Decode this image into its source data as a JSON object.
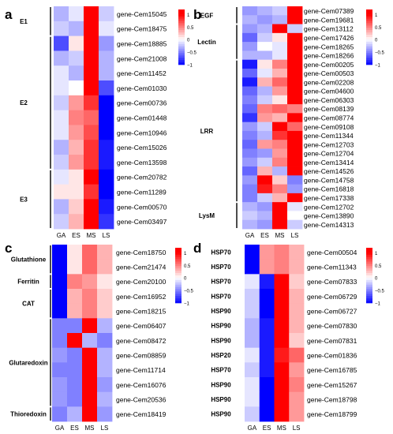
{
  "colors": {
    "low": "#0000ff",
    "mid": "#ffffff",
    "high": "#ff0000"
  },
  "chart_data": [
    {
      "type": "heatmap",
      "panel_label": "a",
      "x_categories": [
        "GA",
        "ES",
        "MS",
        "LS"
      ],
      "legend": {
        "ticks": [
          "1",
          "0.5",
          "0",
          "−0.5",
          "−1"
        ],
        "range": [
          -1,
          1.2
        ]
      },
      "rows": [
        {
          "label": "gene-Cem15045",
          "values": [
            -0.3,
            -0.1,
            1.2,
            -0.2
          ]
        },
        {
          "label": "gene-Cem18475",
          "values": [
            -0.2,
            -0.3,
            1.2,
            -0.1
          ]
        },
        {
          "label": "gene-Cem18885",
          "values": [
            -0.7,
            0.1,
            1.0,
            -0.4
          ]
        },
        {
          "label": "gene-Cem21008",
          "values": [
            -0.3,
            -0.2,
            1.2,
            -0.3
          ]
        },
        {
          "label": "gene-Cem11452",
          "values": [
            -0.1,
            -0.3,
            1.2,
            -0.3
          ]
        },
        {
          "label": "gene-Cem01030",
          "values": [
            -0.1,
            0.0,
            1.1,
            -0.7
          ]
        },
        {
          "label": "gene-Cem00736",
          "values": [
            -0.2,
            0.4,
            0.8,
            -1.0
          ]
        },
        {
          "label": "gene-Cem01448",
          "values": [
            -0.1,
            0.5,
            0.6,
            -1.0
          ]
        },
        {
          "label": "gene-Cem10946",
          "values": [
            -0.1,
            0.4,
            0.7,
            -1.0
          ]
        },
        {
          "label": "gene-Cem15026",
          "values": [
            -0.3,
            0.3,
            0.8,
            -0.9
          ]
        },
        {
          "label": "gene-Cem13598",
          "values": [
            -0.2,
            0.4,
            0.8,
            -0.9
          ]
        },
        {
          "label": "gene-Cem20782",
          "values": [
            -0.1,
            0.1,
            1.0,
            -1.0
          ]
        },
        {
          "label": "gene-Cem11289",
          "values": [
            0.1,
            0.1,
            0.8,
            -1.0
          ]
        },
        {
          "label": "gene-Cem00570",
          "values": [
            -0.3,
            0.2,
            1.0,
            -0.9
          ]
        },
        {
          "label": "gene-Cem03497",
          "values": [
            -0.2,
            0.3,
            1.2,
            -0.8
          ]
        }
      ],
      "groups": [
        {
          "label": "E1",
          "start": 0,
          "end": 1
        },
        {
          "label": "E2",
          "start": 2,
          "end": 10
        },
        {
          "label": "E3",
          "start": 11,
          "end": 14
        }
      ]
    },
    {
      "type": "heatmap",
      "panel_label": "b",
      "x_categories": [
        "GA",
        "ES",
        "MS",
        "LS"
      ],
      "legend": {
        "ticks": [
          "1",
          "0.5",
          "0",
          "−0.5",
          "−1"
        ],
        "range": [
          -1,
          1.2
        ]
      },
      "rows": [
        {
          "label": "gene-Cem07389",
          "values": [
            -0.4,
            -0.3,
            -0.2,
            1.2
          ]
        },
        {
          "label": "gene-Cem19681",
          "values": [
            -0.3,
            -0.4,
            -0.3,
            1.2
          ]
        },
        {
          "label": "gene-Cem13112",
          "values": [
            -0.4,
            -0.3,
            1.2,
            -0.2
          ]
        },
        {
          "label": "gene-Cem17426",
          "values": [
            -0.6,
            -0.2,
            0.1,
            1.2
          ]
        },
        {
          "label": "gene-Cem18265",
          "values": [
            -0.4,
            0.0,
            -0.1,
            1.2
          ]
        },
        {
          "label": "gene-Cem18266",
          "values": [
            -0.3,
            -0.3,
            -0.1,
            1.2
          ]
        },
        {
          "label": "gene-Cem00205",
          "values": [
            -0.9,
            0.1,
            0.5,
            1.2
          ]
        },
        {
          "label": "gene-Cem00503",
          "values": [
            -0.6,
            -0.1,
            0.3,
            1.2
          ]
        },
        {
          "label": "gene-Cem02208",
          "values": [
            -0.9,
            0.3,
            0.6,
            1.1
          ]
        },
        {
          "label": "gene-Cem04600",
          "values": [
            -0.6,
            -0.3,
            0.4,
            1.2
          ]
        },
        {
          "label": "gene-Cem06303",
          "values": [
            -0.5,
            -0.2,
            0.1,
            1.2
          ]
        },
        {
          "label": "gene-Cem08139",
          "values": [
            -0.6,
            0.5,
            0.6,
            0.5
          ]
        },
        {
          "label": "gene-Cem08774",
          "values": [
            -0.8,
            0.4,
            0.3,
            1.1
          ]
        },
        {
          "label": "gene-Cem09108",
          "values": [
            -0.4,
            -0.2,
            1.1,
            0.6
          ]
        },
        {
          "label": "gene-Cem11344",
          "values": [
            -0.5,
            -0.3,
            0.8,
            1.0
          ]
        },
        {
          "label": "gene-Cem12703",
          "values": [
            -0.6,
            0.4,
            0.5,
            1.0
          ]
        },
        {
          "label": "gene-Cem12704",
          "values": [
            -0.5,
            -0.4,
            0.4,
            1.2
          ]
        },
        {
          "label": "gene-Cem13414",
          "values": [
            -0.4,
            -0.2,
            0.5,
            1.1
          ]
        },
        {
          "label": "gene-Cem14526",
          "values": [
            -0.6,
            0.3,
            -0.3,
            1.2
          ]
        },
        {
          "label": "gene-Cem14758",
          "values": [
            -0.4,
            1.1,
            0.2,
            -0.5
          ]
        },
        {
          "label": "gene-Cem16818",
          "values": [
            -0.5,
            0.9,
            0.5,
            -0.4
          ]
        },
        {
          "label": "gene-Cem17338",
          "values": [
            -0.5,
            -0.2,
            0.3,
            1.1
          ]
        },
        {
          "label": "gene-Cem12702",
          "values": [
            -0.3,
            -0.4,
            1.2,
            -0.1
          ]
        },
        {
          "label": "gene-Cem13890",
          "values": [
            -0.2,
            -0.3,
            1.1,
            0.0
          ]
        },
        {
          "label": "gene-Cem14313",
          "values": [
            -0.3,
            -0.4,
            1.2,
            -0.2
          ]
        }
      ],
      "groups": [
        {
          "label": "EGF",
          "start": 0,
          "end": 1
        },
        {
          "label": "Lectin",
          "start": 2,
          "end": 5
        },
        {
          "label": "LRR",
          "start": 6,
          "end": 21
        },
        {
          "label": "LysM",
          "start": 22,
          "end": 24
        }
      ]
    },
    {
      "type": "heatmap",
      "panel_label": "c",
      "x_categories": [
        "GA",
        "ES",
        "MS",
        "LS"
      ],
      "legend": {
        "ticks": [
          "1",
          "0.5",
          "0",
          "−0.5",
          "−1"
        ],
        "range": [
          -1,
          1.2
        ]
      },
      "rows": [
        {
          "label": "gene-Cem18750",
          "values": [
            -1.0,
            0.1,
            0.6,
            0.3
          ]
        },
        {
          "label": "gene-Cem21474",
          "values": [
            -1.0,
            0.1,
            0.6,
            0.3
          ]
        },
        {
          "label": "gene-Cem20100",
          "values": [
            -1.0,
            0.5,
            0.4,
            0.1
          ]
        },
        {
          "label": "gene-Cem16952",
          "values": [
            -1.0,
            0.3,
            0.5,
            0.2
          ]
        },
        {
          "label": "gene-Cem18215",
          "values": [
            -1.0,
            0.3,
            0.5,
            0.2
          ]
        },
        {
          "label": "gene-Cem06407",
          "values": [
            -0.5,
            -0.5,
            1.2,
            -0.3
          ]
        },
        {
          "label": "gene-Cem08472",
          "values": [
            -0.5,
            1.2,
            -0.3,
            -0.5
          ]
        },
        {
          "label": "gene-Cem08859",
          "values": [
            -0.4,
            -0.5,
            1.2,
            -0.3
          ]
        },
        {
          "label": "gene-Cem11714",
          "values": [
            -0.5,
            -0.5,
            1.2,
            -0.3
          ]
        },
        {
          "label": "gene-Cem16076",
          "values": [
            -0.4,
            -0.5,
            1.2,
            -0.4
          ]
        },
        {
          "label": "gene-Cem20536",
          "values": [
            -0.4,
            -0.5,
            1.2,
            -0.3
          ]
        },
        {
          "label": "gene-Cem18419",
          "values": [
            -0.5,
            -0.3,
            1.2,
            -0.4
          ]
        }
      ],
      "groups": [
        {
          "label": "Glutathione",
          "start": 0,
          "end": 1
        },
        {
          "label": "Ferritin",
          "start": 2,
          "end": 2
        },
        {
          "label": "CAT",
          "start": 3,
          "end": 4
        },
        {
          "label": "Glutaredoxin",
          "start": 5,
          "end": 10
        },
        {
          "label": "Thioredoxin",
          "start": 11,
          "end": 11
        }
      ]
    },
    {
      "type": "heatmap",
      "panel_label": "d",
      "x_categories": [
        "GA",
        "ES",
        "MS",
        "LS"
      ],
      "legend": {
        "ticks": [
          "1",
          "0.5",
          "0",
          "−0.5",
          "−1"
        ],
        "range": [
          -1,
          1.2
        ]
      },
      "rows": [
        {
          "label": "gene-Cem00504",
          "values": [
            -1.0,
            0.4,
            0.5,
            0.3
          ]
        },
        {
          "label": "gene-Cem11343",
          "values": [
            -1.0,
            0.4,
            0.5,
            0.3
          ]
        },
        {
          "label": "gene-Cem07833",
          "values": [
            -0.1,
            -0.9,
            1.2,
            0.2
          ]
        },
        {
          "label": "gene-Cem06729",
          "values": [
            -0.2,
            -1.0,
            1.2,
            0.3
          ]
        },
        {
          "label": "gene-Cem06727",
          "values": [
            -0.2,
            -1.0,
            1.2,
            0.3
          ]
        },
        {
          "label": "gene-Cem07830",
          "values": [
            -0.3,
            -0.9,
            1.2,
            0.3
          ]
        },
        {
          "label": "gene-Cem07831",
          "values": [
            -0.3,
            -0.9,
            1.2,
            0.2
          ]
        },
        {
          "label": "gene-Cem01836",
          "values": [
            -0.1,
            -0.9,
            0.9,
            0.6
          ]
        },
        {
          "label": "gene-Cem16785",
          "values": [
            -0.2,
            -0.9,
            1.1,
            0.4
          ]
        },
        {
          "label": "gene-Cem15267",
          "values": [
            -0.1,
            -1.0,
            1.1,
            0.5
          ]
        },
        {
          "label": "gene-Cem18798",
          "values": [
            -0.1,
            -1.0,
            1.1,
            0.4
          ]
        },
        {
          "label": "gene-Cem18799",
          "values": [
            -0.2,
            -1.0,
            1.1,
            0.4
          ]
        }
      ],
      "row_group_labels": [
        "HSP70",
        "HSP70",
        "HSP70",
        "HSP70",
        "HSP90",
        "HSP90",
        "HSP90",
        "HSP20",
        "HSP70",
        "HSP90",
        "HSP90",
        "HSP90"
      ]
    }
  ]
}
